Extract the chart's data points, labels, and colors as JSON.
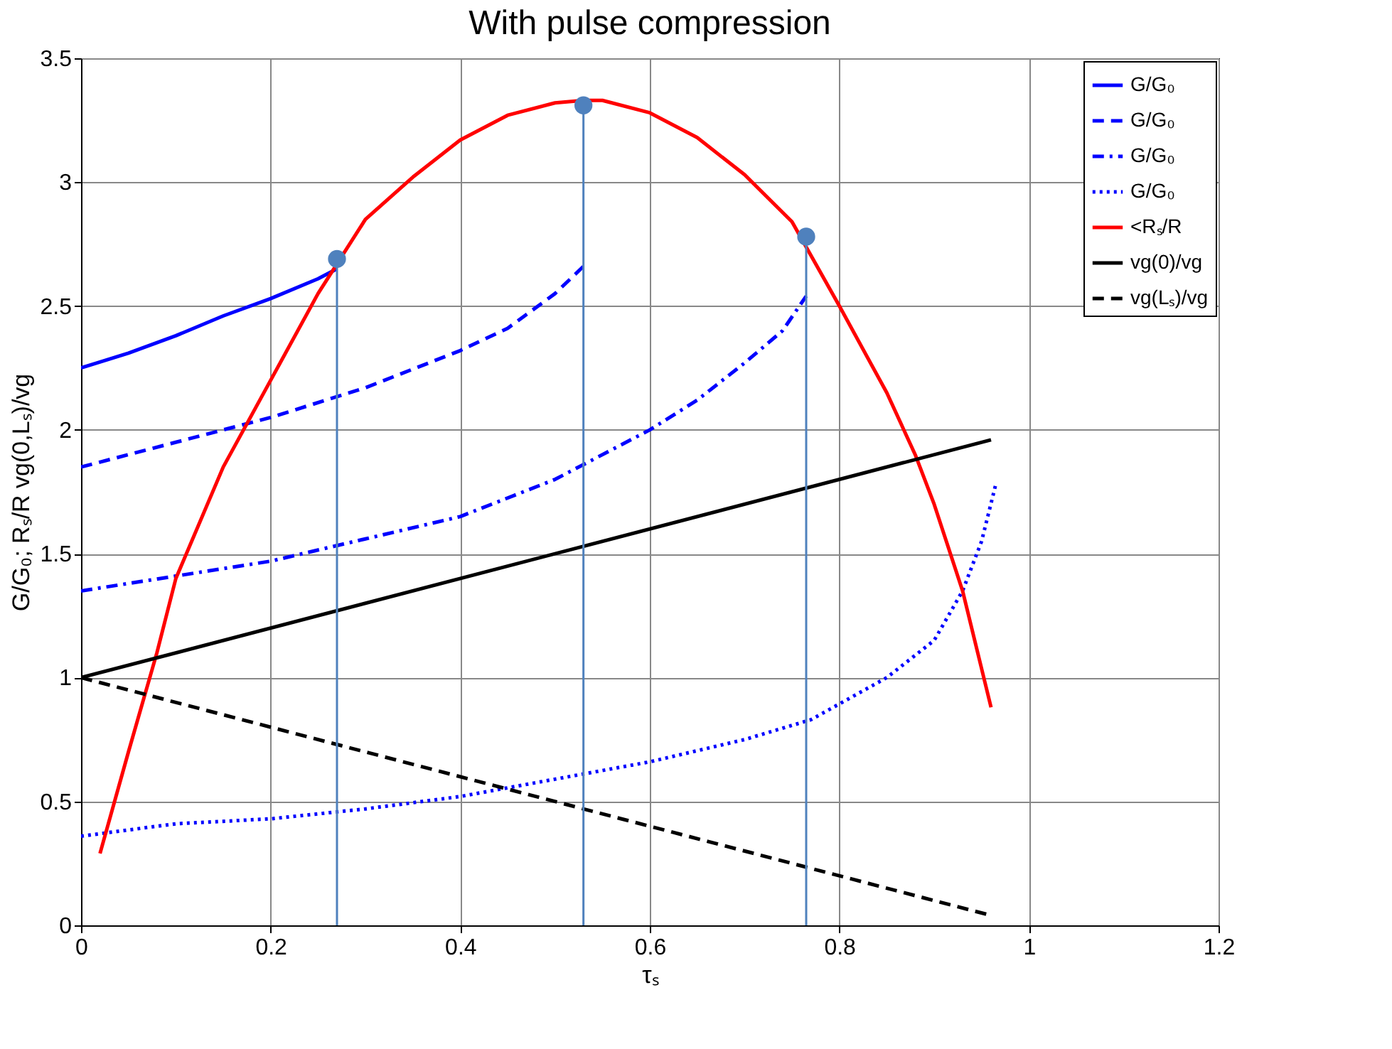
{
  "chart_data": {
    "type": "line",
    "title": "With pulse compression",
    "xlabel": "τₛ",
    "ylabel": "G/G₀; Rₛ/R    vg(0,Lₛ)/vg",
    "xlim": [
      0,
      1.2
    ],
    "xticks": [
      0,
      0.2,
      0.4,
      0.6,
      0.8,
      1,
      1.2
    ],
    "ylim": [
      0,
      3.5
    ],
    "yticks": [
      0,
      0.5,
      1,
      1.5,
      2,
      2.5,
      3,
      3.5
    ],
    "grid": true,
    "legend": "top right",
    "series": [
      {
        "name": "G/G₀",
        "color": "#0000ff",
        "line_style": "solid",
        "x": [
          0,
          0.05,
          0.1,
          0.15,
          0.2,
          0.25,
          0.27
        ],
        "values": [
          2.25,
          2.31,
          2.38,
          2.46,
          2.53,
          2.61,
          2.65
        ]
      },
      {
        "name": "G/G₀",
        "color": "#0000ff",
        "line_style": "dashed",
        "x": [
          0,
          0.1,
          0.2,
          0.3,
          0.4,
          0.45,
          0.5,
          0.53
        ],
        "values": [
          1.85,
          1.95,
          2.05,
          2.17,
          2.32,
          2.41,
          2.55,
          2.66
        ]
      },
      {
        "name": "G/G₀",
        "color": "#0000ff",
        "line_style": "dashdot",
        "x": [
          0,
          0.1,
          0.2,
          0.3,
          0.4,
          0.5,
          0.6,
          0.65,
          0.7,
          0.74,
          0.765
        ],
        "values": [
          1.35,
          1.41,
          1.47,
          1.56,
          1.65,
          1.8,
          2.0,
          2.12,
          2.27,
          2.4,
          2.54
        ]
      },
      {
        "name": "G/G₀",
        "color": "#0000ff",
        "line_style": "dotted",
        "x": [
          0,
          0.1,
          0.2,
          0.3,
          0.4,
          0.5,
          0.6,
          0.7,
          0.77,
          0.85,
          0.9,
          0.93,
          0.95,
          0.965
        ],
        "values": [
          0.36,
          0.41,
          0.43,
          0.47,
          0.52,
          0.59,
          0.66,
          0.75,
          0.83,
          1.0,
          1.15,
          1.35,
          1.55,
          1.78
        ]
      },
      {
        "name": "<Rₛ/R",
        "color": "#ff0000",
        "line_style": "solid",
        "x": [
          0.02,
          0.05,
          0.08,
          0.1,
          0.15,
          0.2,
          0.25,
          0.3,
          0.35,
          0.4,
          0.45,
          0.5,
          0.53,
          0.55,
          0.6,
          0.65,
          0.7,
          0.75,
          0.8,
          0.85,
          0.88,
          0.9,
          0.93,
          0.96
        ],
        "values": [
          0.29,
          0.7,
          1.1,
          1.4,
          1.85,
          2.2,
          2.55,
          2.85,
          3.02,
          3.17,
          3.27,
          3.32,
          3.33,
          3.33,
          3.28,
          3.18,
          3.03,
          2.84,
          2.5,
          2.15,
          1.9,
          1.7,
          1.35,
          0.88
        ]
      },
      {
        "name": "vg(0)/vg",
        "color": "#000000",
        "line_style": "solid",
        "x": [
          0,
          0.96
        ],
        "values": [
          1,
          1.96
        ]
      },
      {
        "name": "vg(Lₛ)/vg",
        "color": "#000000",
        "line_style": "dashed",
        "x": [
          0,
          0.96
        ],
        "values": [
          1,
          0.04
        ]
      },
      {
        "type": "lollipop",
        "color": "#4f81bd",
        "marker": "circle",
        "x": [
          0.27,
          0.53,
          0.765
        ],
        "values": [
          2.69,
          3.31,
          2.78
        ]
      }
    ]
  }
}
